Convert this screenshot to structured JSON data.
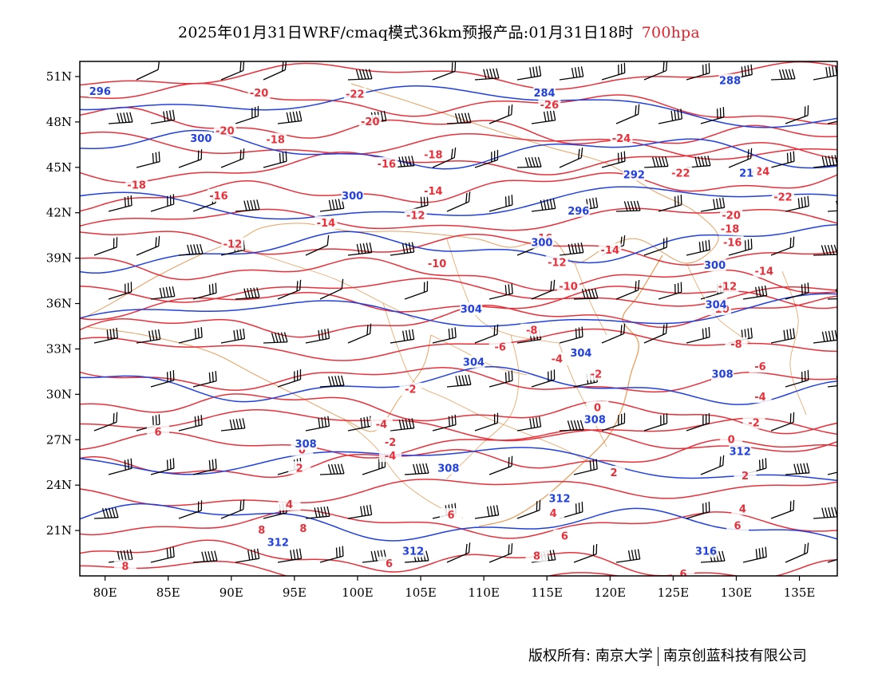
{
  "header": {
    "title": "2025年01月31日WRF/cmaq模式36km预报产品:01月31日18时",
    "level": "700hpa",
    "level_color": "#e8202a"
  },
  "map": {
    "projection": "lat-lon",
    "lon_range": [
      78,
      138
    ],
    "lat_range": [
      18,
      52
    ],
    "x_ticks": [
      "80E",
      "85E",
      "90E",
      "95E",
      "100E",
      "105E",
      "110E",
      "115E",
      "120E",
      "125E",
      "130E",
      "135E"
    ],
    "y_ticks": [
      "51N",
      "48N",
      "45N",
      "42N",
      "39N",
      "36N",
      "33N",
      "30N",
      "27N",
      "24N",
      "21N"
    ],
    "colors": {
      "temperature": "#e8303a",
      "height": "#2040e0",
      "boundary": "#e8a060",
      "wind": "#000000"
    },
    "icons": {
      "wind": "wind-barb-icon"
    }
  },
  "temperature_labels": [
    {
      "t": "-20",
      "lon": 89.5,
      "lat": 47.4
    },
    {
      "t": "-20",
      "lon": 92.2,
      "lat": 49.9
    },
    {
      "t": "-22",
      "lon": 99.8,
      "lat": 49.8
    },
    {
      "t": "-20",
      "lon": 101.0,
      "lat": 48.0
    },
    {
      "t": "-26",
      "lon": 115.2,
      "lat": 49.1
    },
    {
      "t": "-24",
      "lon": 120.9,
      "lat": 46.9
    },
    {
      "t": "-22",
      "lon": 125.6,
      "lat": 44.6
    },
    {
      "t": "-24",
      "lon": 131.9,
      "lat": 44.7
    },
    {
      "t": "-22",
      "lon": 133.7,
      "lat": 43.0
    },
    {
      "t": "-18",
      "lon": 93.5,
      "lat": 46.8
    },
    {
      "t": "-18",
      "lon": 82.5,
      "lat": 43.8
    },
    {
      "t": "-16",
      "lon": 89.0,
      "lat": 43.1
    },
    {
      "t": "-16",
      "lon": 102.3,
      "lat": 45.2
    },
    {
      "t": "-18",
      "lon": 106.0,
      "lat": 45.8
    },
    {
      "t": "-14",
      "lon": 97.5,
      "lat": 41.3
    },
    {
      "t": "-14",
      "lon": 106.0,
      "lat": 43.4
    },
    {
      "t": "-12",
      "lon": 90.1,
      "lat": 39.9
    },
    {
      "t": "-12",
      "lon": 104.6,
      "lat": 41.8
    },
    {
      "t": "-16",
      "lon": 114.7,
      "lat": 40.3
    },
    {
      "t": "-14",
      "lon": 120.0,
      "lat": 39.5
    },
    {
      "t": "-12",
      "lon": 115.8,
      "lat": 38.7
    },
    {
      "t": "-10",
      "lon": 106.3,
      "lat": 38.6
    },
    {
      "t": "-10",
      "lon": 116.7,
      "lat": 37.1
    },
    {
      "t": "-20",
      "lon": 129.6,
      "lat": 41.8
    },
    {
      "t": "-18",
      "lon": 129.5,
      "lat": 40.9
    },
    {
      "t": "-16",
      "lon": 129.7,
      "lat": 40.0
    },
    {
      "t": "-14",
      "lon": 132.2,
      "lat": 38.1
    },
    {
      "t": "-12",
      "lon": 129.3,
      "lat": 37.1
    },
    {
      "t": "-10",
      "lon": 128.7,
      "lat": 35.6
    },
    {
      "t": "-8",
      "lon": 113.8,
      "lat": 34.2
    },
    {
      "t": "-6",
      "lon": 111.3,
      "lat": 33.1
    },
    {
      "t": "-4",
      "lon": 115.8,
      "lat": 32.3
    },
    {
      "t": "-2",
      "lon": 118.9,
      "lat": 31.3
    },
    {
      "t": "-8",
      "lon": 130.0,
      "lat": 33.3
    },
    {
      "t": "-6",
      "lon": 131.9,
      "lat": 31.8
    },
    {
      "t": "-4",
      "lon": 131.9,
      "lat": 29.8
    },
    {
      "t": "-2",
      "lon": 104.2,
      "lat": 30.3
    },
    {
      "t": "0",
      "lon": 119.0,
      "lat": 29.1
    },
    {
      "t": "-2",
      "lon": 131.4,
      "lat": 28.1
    },
    {
      "t": "0",
      "lon": 129.6,
      "lat": 27.0
    },
    {
      "t": "-4",
      "lon": 101.9,
      "lat": 28.0
    },
    {
      "t": "-2",
      "lon": 102.6,
      "lat": 26.8
    },
    {
      "t": "-4",
      "lon": 102.6,
      "lat": 25.9
    },
    {
      "t": "6",
      "lon": 84.2,
      "lat": 27.5
    },
    {
      "t": "0",
      "lon": 95.6,
      "lat": 26.3
    },
    {
      "t": "2",
      "lon": 95.4,
      "lat": 25.1
    },
    {
      "t": "2",
      "lon": 120.3,
      "lat": 24.8
    },
    {
      "t": "2",
      "lon": 130.7,
      "lat": 24.6
    },
    {
      "t": "4",
      "lon": 94.6,
      "lat": 22.7
    },
    {
      "t": "4",
      "lon": 115.5,
      "lat": 22.1
    },
    {
      "t": "4",
      "lon": 130.5,
      "lat": 22.4
    },
    {
      "t": "6",
      "lon": 107.4,
      "lat": 22.0
    },
    {
      "t": "6",
      "lon": 116.4,
      "lat": 20.6
    },
    {
      "t": "6",
      "lon": 130.1,
      "lat": 21.3
    },
    {
      "t": "8",
      "lon": 92.4,
      "lat": 21.0
    },
    {
      "t": "8",
      "lon": 95.7,
      "lat": 21.1
    },
    {
      "t": "8",
      "lon": 114.2,
      "lat": 19.3
    },
    {
      "t": "8",
      "lon": 81.6,
      "lat": 18.6
    },
    {
      "t": "6",
      "lon": 102.5,
      "lat": 18.8
    },
    {
      "t": "6",
      "lon": 125.8,
      "lat": 18.1
    }
  ],
  "height_labels": [
    {
      "t": "296",
      "lon": 79.6,
      "lat": 50.0
    },
    {
      "t": "300",
      "lon": 87.6,
      "lat": 46.9
    },
    {
      "t": "284",
      "lon": 114.8,
      "lat": 49.9
    },
    {
      "t": "288",
      "lon": 129.5,
      "lat": 50.7
    },
    {
      "t": "292",
      "lon": 121.9,
      "lat": 44.5
    },
    {
      "t": "21",
      "lon": 130.8,
      "lat": 44.6
    },
    {
      "t": "296",
      "lon": 117.5,
      "lat": 42.1
    },
    {
      "t": "300",
      "lon": 99.6,
      "lat": 43.1
    },
    {
      "t": "300",
      "lon": 114.6,
      "lat": 40.0
    },
    {
      "t": "300",
      "lon": 128.3,
      "lat": 38.5
    },
    {
      "t": "304",
      "lon": 109.0,
      "lat": 35.6
    },
    {
      "t": "304",
      "lon": 109.2,
      "lat": 32.1
    },
    {
      "t": "304",
      "lon": 117.7,
      "lat": 32.7
    },
    {
      "t": "304",
      "lon": 128.4,
      "lat": 35.9
    },
    {
      "t": "308",
      "lon": 128.9,
      "lat": 31.3
    },
    {
      "t": "308",
      "lon": 118.8,
      "lat": 28.3
    },
    {
      "t": "308",
      "lon": 95.9,
      "lat": 26.7
    },
    {
      "t": "308",
      "lon": 107.2,
      "lat": 25.1
    },
    {
      "t": "312",
      "lon": 130.3,
      "lat": 26.2
    },
    {
      "t": "312",
      "lon": 116.0,
      "lat": 23.1
    },
    {
      "t": "312",
      "lon": 93.7,
      "lat": 20.2
    },
    {
      "t": "312",
      "lon": 104.4,
      "lat": 19.6
    },
    {
      "t": "316",
      "lon": 127.6,
      "lat": 19.6
    }
  ],
  "footer": {
    "copyright_label": "版权所有:",
    "org1": "南京大学",
    "org2": "南京创蓝科技有限公司"
  }
}
